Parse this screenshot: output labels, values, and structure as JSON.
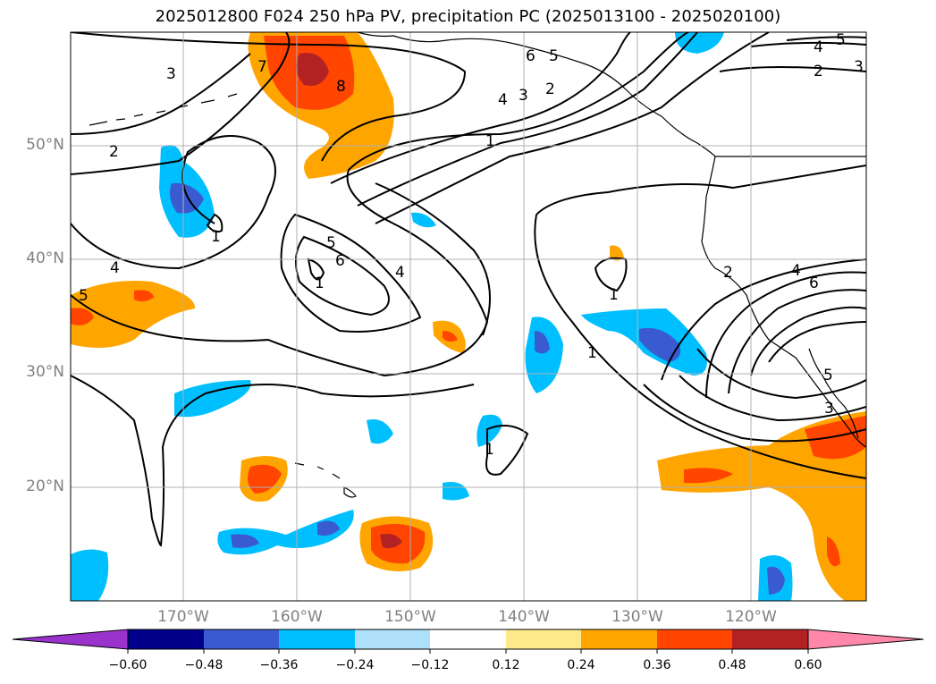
{
  "title": "2025012800 F024 250 hPa PV, precipitation PC (2025013100 - 2025020100)",
  "latitude_labels": [
    "50°N",
    "40°N",
    "30°N",
    "20°N"
  ],
  "longitude_labels": [
    "170°W",
    "160°W",
    "150°W",
    "140°W",
    "130°W",
    "120°W"
  ],
  "colorbar": {
    "tick_labels": [
      "−0.60",
      "−0.48",
      "−0.36",
      "−0.24",
      "−0.12",
      "0.12",
      "0.24",
      "0.36",
      "0.48",
      "0.60"
    ],
    "colors": [
      "#9933cc",
      "#00008b",
      "#3a5bcf",
      "#00bfff",
      "#aee0fa",
      "#ffffff",
      "#fde98a",
      "#ffa500",
      "#ff4500",
      "#b22222",
      "#ff88aa"
    ]
  },
  "pv_contour_labels": [
    "1",
    "2",
    "3",
    "4",
    "5",
    "6",
    "7",
    "8"
  ],
  "colors": {
    "coastline": "#000000",
    "gridline": "#b0b0b0",
    "contour": "#000000",
    "label_gray": "#808080"
  }
}
